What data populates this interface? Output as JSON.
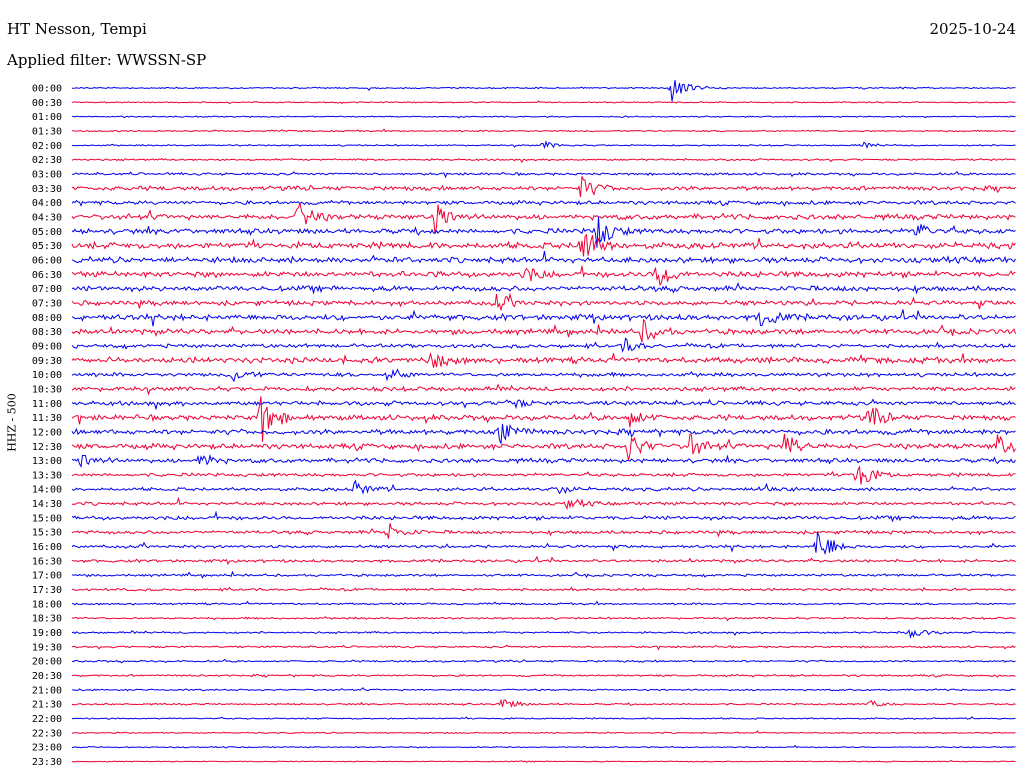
{
  "header": {
    "station": "HT Nesson, Tempi",
    "date": "2025-10-24",
    "filter": "Applied filter: WWSSN-SP"
  },
  "chart_data": {
    "type": "line",
    "subtype": "helicorder",
    "ylabel": "HHZ - 500",
    "colors": [
      "#0000ee",
      "#ee0033"
    ],
    "time_labels": [
      "00:00",
      "00:30",
      "01:00",
      "01:30",
      "02:00",
      "02:30",
      "03:00",
      "03:30",
      "04:00",
      "04:30",
      "05:00",
      "05:30",
      "06:00",
      "06:30",
      "07:00",
      "07:30",
      "08:00",
      "08:30",
      "09:00",
      "09:30",
      "10:00",
      "10:30",
      "11:00",
      "11:30",
      "12:00",
      "12:30",
      "13:00",
      "13:30",
      "14:00",
      "14:30",
      "15:00",
      "15:30",
      "16:00",
      "16:30",
      "17:00",
      "17:30",
      "18:00",
      "18:30",
      "19:00",
      "19:30",
      "20:00",
      "20:30",
      "21:00",
      "21:30",
      "22:00",
      "22:30",
      "23:00",
      "23:30"
    ],
    "noise_levels": [
      0.6,
      0.5,
      0.5,
      0.6,
      0.6,
      0.8,
      1.0,
      1.8,
      1.6,
      2.2,
      2.2,
      2.6,
      2.4,
      2.4,
      2.2,
      2.0,
      2.4,
      2.2,
      1.6,
      2.4,
      1.6,
      1.8,
      1.8,
      2.2,
      2.2,
      2.2,
      1.8,
      1.4,
      1.4,
      1.4,
      1.6,
      1.4,
      1.2,
      1.2,
      1.0,
      1.0,
      0.8,
      0.8,
      0.8,
      0.8,
      0.8,
      0.8,
      0.7,
      0.7,
      0.6,
      0.5,
      0.5,
      0.4
    ],
    "events": [
      {
        "row": 0,
        "x": 0.635,
        "amp": 16
      },
      {
        "row": 4,
        "x": 0.5,
        "amp": 4
      },
      {
        "row": 4,
        "x": 0.835,
        "amp": 3
      },
      {
        "row": 7,
        "x": 0.54,
        "amp": 12
      },
      {
        "row": 9,
        "x": 0.24,
        "amp": 14
      },
      {
        "row": 9,
        "x": 0.385,
        "amp": 16
      },
      {
        "row": 10,
        "x": 0.556,
        "amp": 20
      },
      {
        "row": 10,
        "x": 0.895,
        "amp": 9
      },
      {
        "row": 11,
        "x": 0.54,
        "amp": 22
      },
      {
        "row": 13,
        "x": 0.62,
        "amp": 16
      },
      {
        "row": 13,
        "x": 0.48,
        "amp": 8
      },
      {
        "row": 15,
        "x": 0.45,
        "amp": 8
      },
      {
        "row": 16,
        "x": 0.73,
        "amp": 11
      },
      {
        "row": 17,
        "x": 0.605,
        "amp": 12
      },
      {
        "row": 18,
        "x": 0.585,
        "amp": 7
      },
      {
        "row": 19,
        "x": 0.38,
        "amp": 10
      },
      {
        "row": 20,
        "x": 0.17,
        "amp": 8
      },
      {
        "row": 20,
        "x": 0.335,
        "amp": 7
      },
      {
        "row": 22,
        "x": 0.46,
        "amp": 7
      },
      {
        "row": 23,
        "x": 0.2,
        "amp": 26
      },
      {
        "row": 23,
        "x": 0.59,
        "amp": 10
      },
      {
        "row": 23,
        "x": 0.845,
        "amp": 12
      },
      {
        "row": 24,
        "x": 0.455,
        "amp": 14
      },
      {
        "row": 25,
        "x": 0.59,
        "amp": 14
      },
      {
        "row": 25,
        "x": 0.655,
        "amp": 12
      },
      {
        "row": 25,
        "x": 0.755,
        "amp": 14
      },
      {
        "row": 25,
        "x": 0.98,
        "amp": 12
      },
      {
        "row": 26,
        "x": 0.01,
        "amp": 8
      },
      {
        "row": 26,
        "x": 0.135,
        "amp": 8
      },
      {
        "row": 27,
        "x": 0.83,
        "amp": 18
      },
      {
        "row": 28,
        "x": 0.3,
        "amp": 8
      },
      {
        "row": 28,
        "x": 0.51,
        "amp": 6
      },
      {
        "row": 28,
        "x": 0.73,
        "amp": 6
      },
      {
        "row": 29,
        "x": 0.525,
        "amp": 6
      },
      {
        "row": 31,
        "x": 0.335,
        "amp": 10
      },
      {
        "row": 32,
        "x": 0.79,
        "amp": 22
      },
      {
        "row": 38,
        "x": 0.885,
        "amp": 8
      },
      {
        "row": 43,
        "x": 0.455,
        "amp": 7
      },
      {
        "row": 43,
        "x": 0.845,
        "amp": 4
      }
    ]
  }
}
